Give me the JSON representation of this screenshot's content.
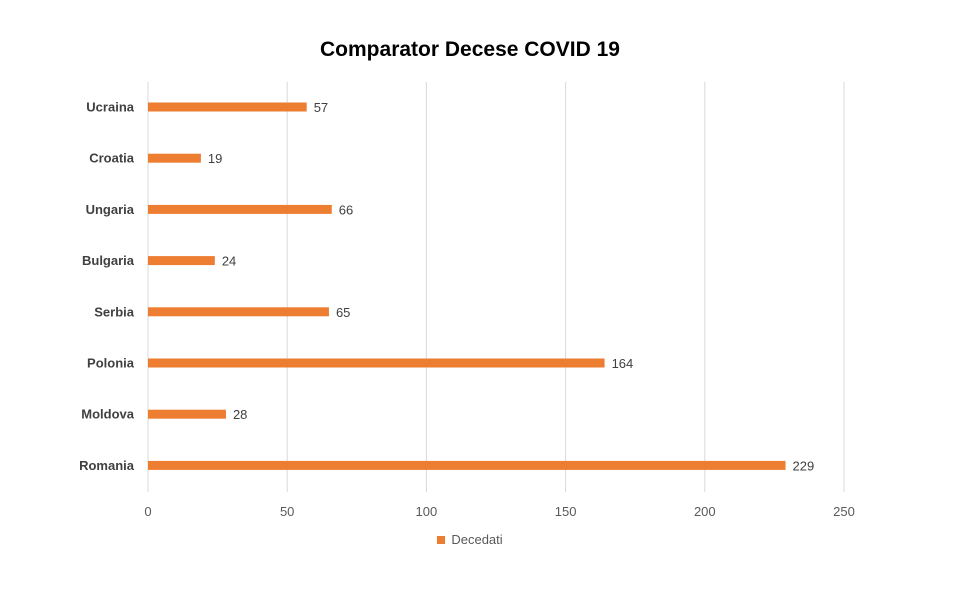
{
  "chart_data": {
    "type": "bar",
    "orientation": "horizontal",
    "title": "Comparator Decese COVID 19",
    "categories": [
      "Ucraina",
      "Croatia",
      "Ungaria",
      "Bulgaria",
      "Serbia",
      "Polonia",
      "Moldova",
      "Romania"
    ],
    "series": [
      {
        "name": "Decedati",
        "values": [
          57,
          19,
          66,
          24,
          65,
          164,
          28,
          229
        ],
        "color": "#ed7d31"
      }
    ],
    "xlim": [
      0,
      250
    ],
    "xticks": [
      0,
      50,
      100,
      150,
      200,
      250
    ],
    "grid": true,
    "legend": "bottom",
    "data_labels": true
  }
}
